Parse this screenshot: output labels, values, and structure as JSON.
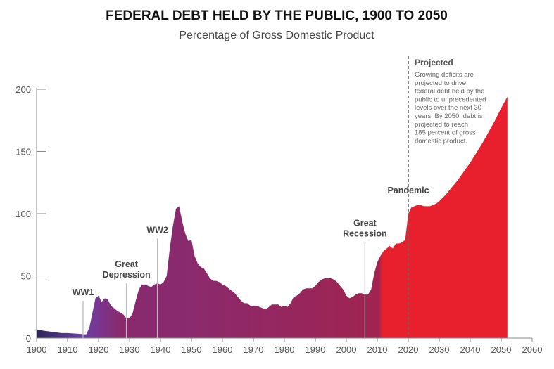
{
  "chart_data": {
    "type": "area",
    "title": "FEDERAL DEBT HELD BY THE PUBLIC, 1900 TO 2050",
    "subtitle": "Percentage of Gross Domestic Product",
    "xlabel": "",
    "ylabel": "",
    "xlim": [
      1900,
      2060
    ],
    "ylim": [
      0,
      200
    ],
    "x_ticks": [
      "1900",
      "1910",
      "1920",
      "1930",
      "1940",
      "1950",
      "1960",
      "1970",
      "1980",
      "1990",
      "2000",
      "2010",
      "2020",
      "2030",
      "2040",
      "2050",
      "2060"
    ],
    "y_ticks": [
      "0",
      "50",
      "100",
      "150",
      "200"
    ],
    "grid": false,
    "series": [
      {
        "values": [
          [
            1900,
            7
          ],
          [
            1902,
            6
          ],
          [
            1905,
            5
          ],
          [
            1908,
            4
          ],
          [
            1910,
            4
          ],
          [
            1913,
            3.5
          ],
          [
            1916,
            3
          ],
          [
            1917,
            8
          ],
          [
            1918,
            20
          ],
          [
            1919,
            32
          ],
          [
            1920,
            34
          ],
          [
            1921,
            29
          ],
          [
            1922,
            32
          ],
          [
            1923,
            31
          ],
          [
            1924,
            26
          ],
          [
            1926,
            22
          ],
          [
            1928,
            19
          ],
          [
            1929,
            16
          ],
          [
            1930,
            16
          ],
          [
            1931,
            20
          ],
          [
            1932,
            30
          ],
          [
            1933,
            39
          ],
          [
            1934,
            43
          ],
          [
            1935,
            43
          ],
          [
            1936,
            42
          ],
          [
            1937,
            41
          ],
          [
            1938,
            43
          ],
          [
            1939,
            44
          ],
          [
            1940,
            43
          ],
          [
            1941,
            45
          ],
          [
            1942,
            50
          ],
          [
            1943,
            72
          ],
          [
            1944,
            90
          ],
          [
            1945,
            104
          ],
          [
            1946,
            106
          ],
          [
            1947,
            94
          ],
          [
            1948,
            84
          ],
          [
            1949,
            78
          ],
          [
            1950,
            79
          ],
          [
            1951,
            66
          ],
          [
            1952,
            60
          ],
          [
            1953,
            57
          ],
          [
            1954,
            56
          ],
          [
            1955,
            52
          ],
          [
            1956,
            48
          ],
          [
            1957,
            46
          ],
          [
            1958,
            46
          ],
          [
            1959,
            45
          ],
          [
            1960,
            43
          ],
          [
            1961,
            42
          ],
          [
            1962,
            40
          ],
          [
            1963,
            38
          ],
          [
            1964,
            36
          ],
          [
            1965,
            33
          ],
          [
            1966,
            30
          ],
          [
            1967,
            28
          ],
          [
            1968,
            28
          ],
          [
            1969,
            26
          ],
          [
            1970,
            26
          ],
          [
            1971,
            26
          ],
          [
            1972,
            25
          ],
          [
            1973,
            24
          ],
          [
            1974,
            23
          ],
          [
            1975,
            25
          ],
          [
            1976,
            27
          ],
          [
            1977,
            27
          ],
          [
            1978,
            27
          ],
          [
            1979,
            25
          ],
          [
            1980,
            26
          ],
          [
            1981,
            25
          ],
          [
            1982,
            28
          ],
          [
            1983,
            33
          ],
          [
            1984,
            34
          ],
          [
            1985,
            36
          ],
          [
            1986,
            39
          ],
          [
            1987,
            40
          ],
          [
            1988,
            40
          ],
          [
            1989,
            40
          ],
          [
            1990,
            42
          ],
          [
            1991,
            45
          ],
          [
            1992,
            47
          ],
          [
            1993,
            48
          ],
          [
            1994,
            48
          ],
          [
            1995,
            48
          ],
          [
            1996,
            47
          ],
          [
            1997,
            45
          ],
          [
            1998,
            42
          ],
          [
            1999,
            39
          ],
          [
            2000,
            34
          ],
          [
            2001,
            32
          ],
          [
            2002,
            33
          ],
          [
            2003,
            35
          ],
          [
            2004,
            36
          ],
          [
            2005,
            36
          ],
          [
            2006,
            35
          ],
          [
            2007,
            35
          ],
          [
            2008,
            39
          ],
          [
            2009,
            52
          ],
          [
            2010,
            61
          ],
          [
            2011,
            66
          ],
          [
            2012,
            70
          ],
          [
            2013,
            72
          ],
          [
            2014,
            74
          ],
          [
            2015,
            72
          ],
          [
            2016,
            76
          ],
          [
            2017,
            76
          ],
          [
            2018,
            77
          ],
          [
            2019,
            79
          ],
          [
            2020,
            100
          ],
          [
            2021,
            105
          ],
          [
            2022,
            106
          ],
          [
            2023,
            107
          ],
          [
            2024,
            107
          ],
          [
            2025,
            106
          ],
          [
            2026,
            106
          ],
          [
            2027,
            106
          ],
          [
            2028,
            107
          ],
          [
            2029,
            108
          ],
          [
            2030,
            110
          ],
          [
            2032,
            115
          ],
          [
            2034,
            121
          ],
          [
            2036,
            127
          ],
          [
            2038,
            134
          ],
          [
            2040,
            141
          ],
          [
            2042,
            149
          ],
          [
            2044,
            157
          ],
          [
            2046,
            166
          ],
          [
            2048,
            175
          ],
          [
            2050,
            185
          ],
          [
            2052,
            194
          ]
        ]
      }
    ],
    "annotations": [
      {
        "lines": [
          "WW1"
        ],
        "x": 1915,
        "y_top": 30
      },
      {
        "lines": [
          "Great",
          "Depression"
        ],
        "x": 1929,
        "y_top": 44
      },
      {
        "lines": [
          "WW2"
        ],
        "x": 1939,
        "y_top": 80
      },
      {
        "lines": [
          "Great",
          "Recession"
        ],
        "x": 2006,
        "y_top": 77
      },
      {
        "lines": [
          "Pandemic"
        ],
        "x": 2020,
        "y_top": 112
      }
    ],
    "projection": {
      "start_year": 2020,
      "heading": "Projected",
      "text_lines": [
        "Growing deficits are",
        "projected to drive",
        "federal debt held by the",
        "public to unprecedented",
        "levels over the next 30",
        "years. By 2050, debt is",
        "projected to reach",
        "185 percent of gross",
        "domestic product."
      ]
    },
    "colors": {
      "start": "#2e2457",
      "ww1": "#6a3fa8",
      "mid": "#8a2a6e",
      "late": "#a02450",
      "projected": "#e8202e"
    }
  }
}
